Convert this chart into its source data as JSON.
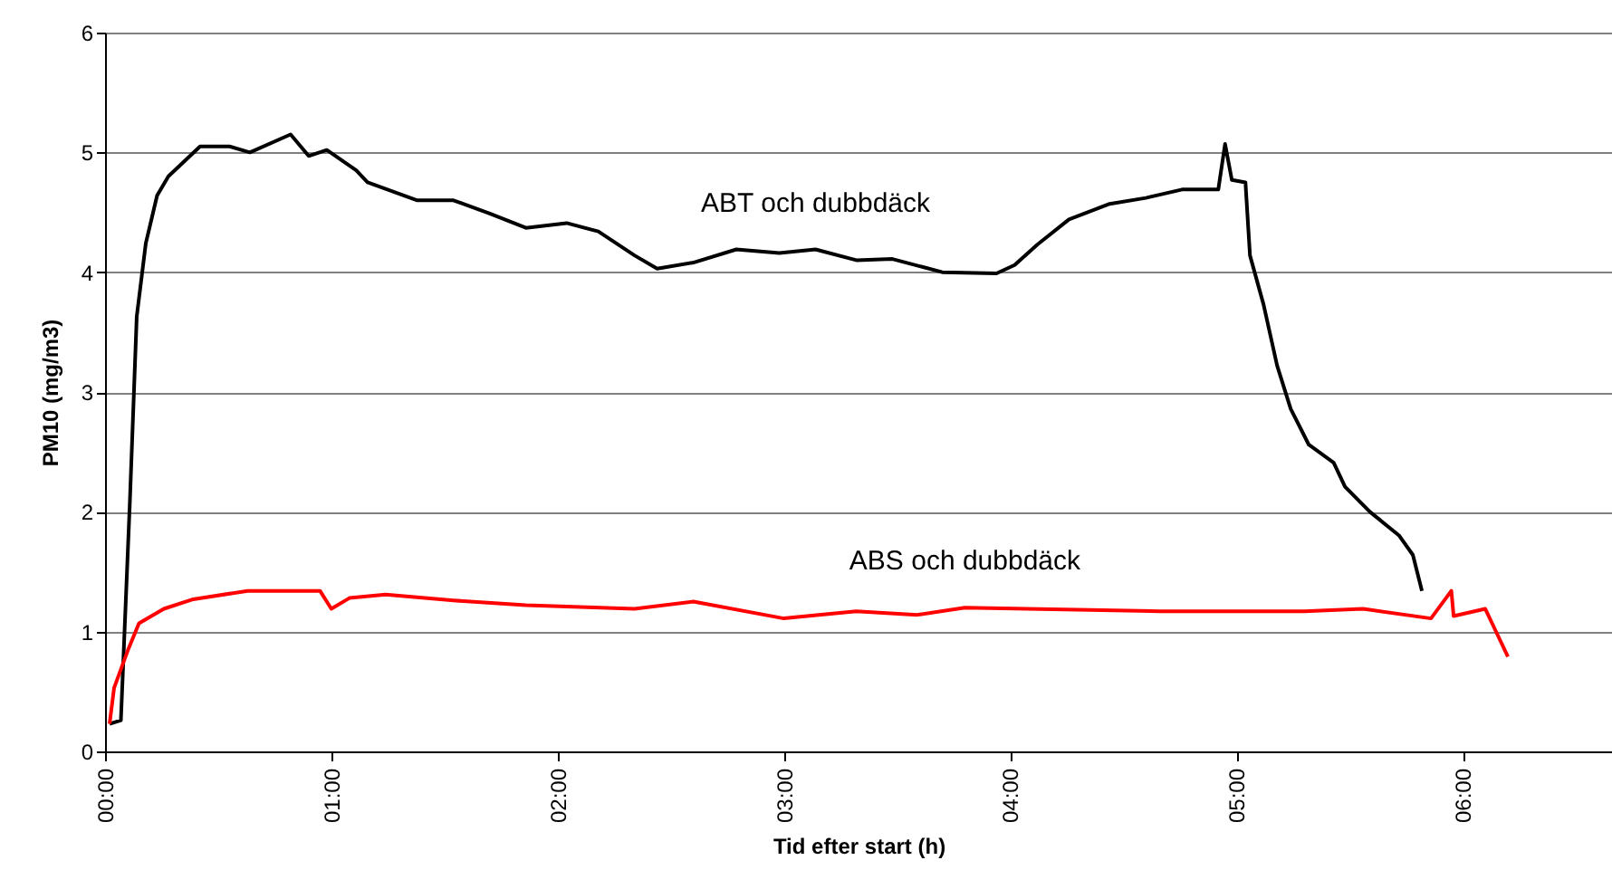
{
  "chart_data": {
    "type": "line",
    "xlabel": "Tid efter start (h)",
    "ylabel": "PM10 (mg/m3)",
    "xlim": [
      0,
      6.66
    ],
    "ylim": [
      0,
      6
    ],
    "xticks": [
      {
        "value": 0,
        "label": "00:00"
      },
      {
        "value": 1,
        "label": "01:00"
      },
      {
        "value": 2,
        "label": "02:00"
      },
      {
        "value": 3,
        "label": "03:00"
      },
      {
        "value": 4,
        "label": "04:00"
      },
      {
        "value": 5,
        "label": "05:00"
      },
      {
        "value": 6,
        "label": "06:00"
      }
    ],
    "yticks": [
      0,
      1,
      2,
      3,
      4,
      5,
      6
    ],
    "grid": "y",
    "series": [
      {
        "name": "ABT och dubbdäck",
        "color": "#000000",
        "x": [
          0.02,
          0.07,
          0.11,
          0.14,
          0.18,
          0.23,
          0.28,
          0.42,
          0.55,
          0.64,
          0.82,
          0.9,
          0.98,
          1.11,
          1.16,
          1.38,
          1.54,
          1.7,
          1.86,
          2.04,
          2.18,
          2.34,
          2.44,
          2.6,
          2.79,
          2.98,
          3.14,
          3.32,
          3.48,
          3.7,
          3.94,
          4.02,
          4.12,
          4.26,
          4.44,
          4.6,
          4.76,
          4.92,
          4.95,
          4.98,
          5.04,
          5.06,
          5.12,
          5.18,
          5.24,
          5.32,
          5.43,
          5.48,
          5.59,
          5.72,
          5.78,
          5.82
        ],
        "values": [
          0.23,
          0.26,
          2.1,
          3.63,
          4.24,
          4.64,
          4.8,
          5.05,
          5.05,
          5.0,
          5.15,
          4.97,
          5.02,
          4.85,
          4.75,
          4.6,
          4.6,
          4.49,
          4.37,
          4.41,
          4.34,
          4.14,
          4.03,
          4.08,
          4.19,
          4.16,
          4.19,
          4.1,
          4.11,
          4.0,
          3.99,
          4.06,
          4.23,
          4.44,
          4.57,
          4.62,
          4.69,
          4.69,
          5.07,
          4.77,
          4.75,
          4.14,
          3.73,
          3.22,
          2.86,
          2.56,
          2.41,
          2.21,
          2.0,
          1.8,
          1.64,
          1.34
        ]
      },
      {
        "name": "ABS och dubbdäck",
        "color": "#ff0000",
        "x": [
          0.02,
          0.04,
          0.1,
          0.15,
          0.26,
          0.39,
          0.63,
          0.95,
          1.0,
          1.08,
          1.24,
          1.54,
          1.86,
          2.34,
          2.6,
          3.0,
          3.32,
          3.59,
          3.8,
          4.66,
          5.3,
          5.56,
          5.86,
          5.95,
          5.96,
          6.1,
          6.15,
          6.2
        ],
        "values": [
          0.23,
          0.53,
          0.84,
          1.07,
          1.19,
          1.27,
          1.34,
          1.34,
          1.19,
          1.28,
          1.31,
          1.26,
          1.22,
          1.19,
          1.25,
          1.11,
          1.17,
          1.14,
          1.2,
          1.17,
          1.17,
          1.19,
          1.11,
          1.34,
          1.13,
          1.19,
          0.99,
          0.79
        ]
      }
    ]
  }
}
